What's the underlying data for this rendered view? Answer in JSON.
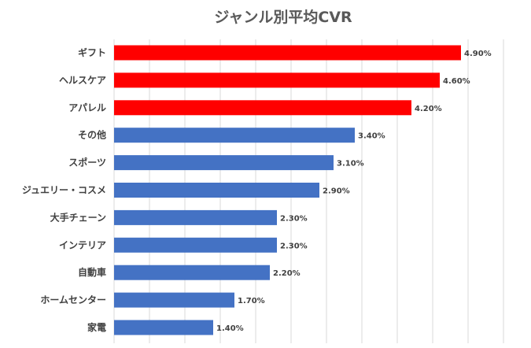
{
  "chart_data": {
    "type": "bar",
    "orientation": "horizontal",
    "title": "ジャンル別平均CVR",
    "xlabel": "",
    "ylabel": "",
    "xlim": [
      0,
      5.5
    ],
    "grid": true,
    "legend": "none",
    "categories": [
      "ギフト",
      "ヘルスケア",
      "アパレル",
      "その他",
      "スポーツ",
      "ジュエリー・コスメ",
      "大手チェーン",
      "インテリア",
      "自動車",
      "ホームセンター",
      "家電"
    ],
    "values": [
      4.9,
      4.6,
      4.2,
      3.4,
      3.1,
      2.9,
      2.3,
      2.3,
      2.2,
      1.7,
      1.4
    ],
    "value_labels": [
      "4.90%",
      "4.60%",
      "4.20%",
      "3.40%",
      "3.10%",
      "2.90%",
      "2.30%",
      "2.30%",
      "2.20%",
      "1.70%",
      "1.40%"
    ],
    "colors": {
      "highlight": "#ff0000",
      "default": "#4472c4",
      "highlight_indices": [
        0,
        1,
        2
      ]
    }
  }
}
